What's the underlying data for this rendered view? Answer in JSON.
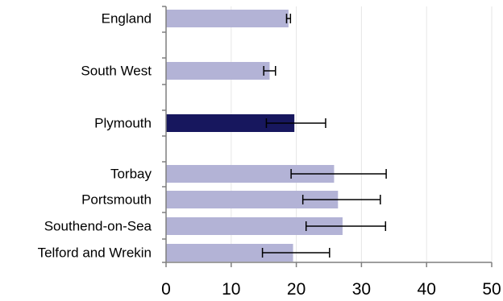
{
  "chart_data": {
    "type": "bar",
    "orientation": "horizontal",
    "categories": [
      "England",
      "South West",
      "Plymouth",
      "Torbay",
      "Portsmouth",
      "Southend-on-Sea",
      "Telford and Wrekin"
    ],
    "values": [
      18.8,
      15.9,
      19.7,
      25.8,
      26.4,
      27.1,
      19.5
    ],
    "error_low": [
      18.5,
      15.0,
      15.4,
      19.2,
      21.0,
      21.5,
      14.8
    ],
    "error_high": [
      19.1,
      16.8,
      24.5,
      33.8,
      32.9,
      33.7,
      25.1
    ],
    "highlight_category": "Plymouth",
    "xlim": [
      0,
      50
    ],
    "xticks": [
      0,
      10,
      20,
      30,
      40,
      50
    ],
    "grid": "vertical",
    "colors": {
      "bar": "#b3b3d6",
      "highlight": "#17175e",
      "grid": "#e6e6e6",
      "axis": "#7f7f7f",
      "error": "#000000"
    }
  }
}
